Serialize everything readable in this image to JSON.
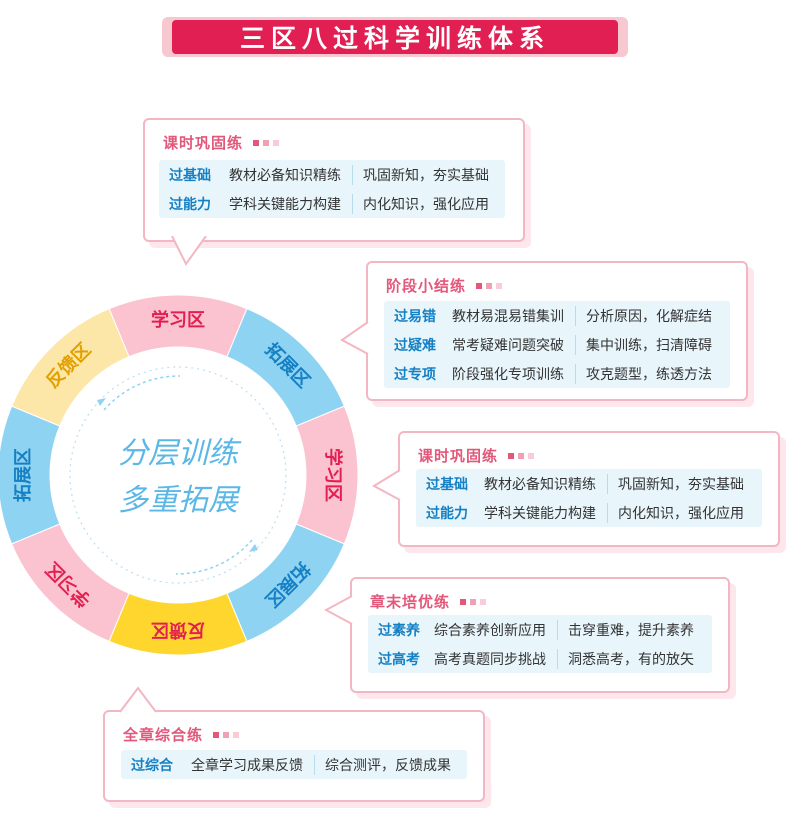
{
  "title": "三区八过科学训练体系",
  "center": {
    "line1": "分层训练",
    "line2": "多重拓展"
  },
  "ring": [
    {
      "label": "学习区",
      "color": "#fbc3cf"
    },
    {
      "label": "拓展区",
      "color": "#8fd3f2"
    },
    {
      "label": "学习区",
      "color": "#fbc3cf"
    },
    {
      "label": "拓展区",
      "color": "#8fd3f2"
    },
    {
      "label": "反馈区",
      "color": "#ffd62e"
    },
    {
      "label": "学习区",
      "color": "#fbc3cf"
    },
    {
      "label": "拓展区",
      "color": "#8fd3f2"
    },
    {
      "label": "反馈区",
      "color": "#fde7a8"
    }
  ],
  "cards": [
    {
      "title": "课时巩固练",
      "rows": [
        {
          "k": "过基础",
          "a": "教材必备知识精练",
          "b": "巩固新知，夯实基础"
        },
        {
          "k": "过能力",
          "a": "学科关键能力构建",
          "b": "内化知识，强化应用"
        }
      ]
    },
    {
      "title": "阶段小结练",
      "rows": [
        {
          "k": "过易错",
          "a": "教材易混易错集训",
          "b": "分析原因，化解症结"
        },
        {
          "k": "过疑难",
          "a": "常考疑难问题突破",
          "b": "集中训练，扫清障碍"
        },
        {
          "k": "过专项",
          "a": "阶段强化专项训练",
          "b": "攻克题型，练透方法"
        }
      ]
    },
    {
      "title": "课时巩固练",
      "rows": [
        {
          "k": "过基础",
          "a": "教材必备知识精练",
          "b": "巩固新知，夯实基础"
        },
        {
          "k": "过能力",
          "a": "学科关键能力构建",
          "b": "内化知识，强化应用"
        }
      ]
    },
    {
      "title": "章末培优练",
      "rows": [
        {
          "k": "过素养",
          "a": "综合素养创新应用",
          "b": "击穿重难，提升素养"
        },
        {
          "k": "过高考",
          "a": "高考真题同步挑战",
          "b": "洞悉高考，有的放矢"
        }
      ]
    },
    {
      "title": "全章综合练",
      "rows": [
        {
          "k": "过综合",
          "a": "全章学习成果反馈",
          "b": "综合测评，反馈成果"
        }
      ]
    }
  ]
}
